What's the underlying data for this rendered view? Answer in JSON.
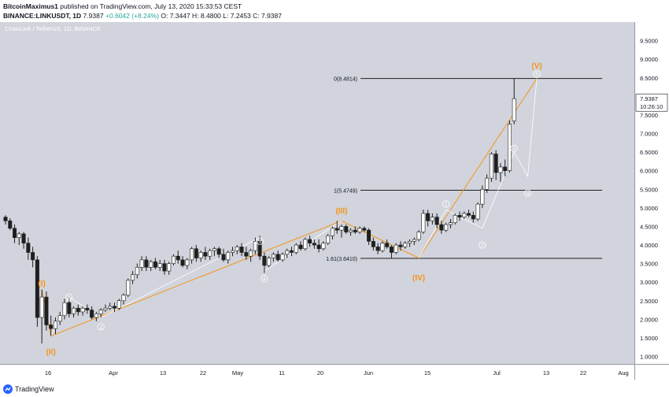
{
  "header": {
    "line1": {
      "author": "BitcoinMaximus1",
      "rest": " published on TradingView.com, July 13, 2020 15:33:53 CEST"
    },
    "line2": {
      "symbol": "BINANCE:LINKUSDT, 1D",
      "last": "7.9387",
      "change": "+0.6042 (+8.24%)",
      "ohlc": "O: 7.3447  H: 8.4800  L: 7.2453  C: 7.9387"
    }
  },
  "chart_label": "ChainLink / TetherUS, 1D, BINANCE",
  "price_axis": {
    "ticks": [
      "9.5000",
      "9.0000",
      "8.5000",
      "8.0000",
      "7.5000",
      "7.0000",
      "6.5000",
      "6.0000",
      "5.5000",
      "5.0000",
      "4.5000",
      "4.0000",
      "3.5000",
      "3.0000",
      "2.5000",
      "2.0000",
      "1.5000",
      "1.0000"
    ],
    "last_price": "7.9387",
    "countdown": "10:26:10"
  },
  "time_axis": {
    "ticks": [
      "16",
      "Apr",
      "13",
      "22",
      "May",
      "11",
      "20",
      "Jun",
      "15",
      "Jul",
      "13",
      "22",
      "Aug"
    ]
  },
  "colors": {
    "background": "#d1d4dc",
    "up": "#ffffff",
    "down": "#1f1f1f",
    "orange": "#f7931a",
    "white_line": "#ffffff",
    "level_line": "#1f1f1f"
  },
  "chart_data": {
    "type": "candlestick",
    "title": "ChainLink / TetherUS, 1D, BINANCE",
    "ylim": [
      0.8,
      10.0
    ],
    "y_scale": "linear",
    "grid": false,
    "fib_levels": [
      {
        "label": "0(8.4814)",
        "value": 8.4814
      },
      {
        "label": "1(5.4749)",
        "value": 5.4749
      },
      {
        "label": "1.61(3.6410)",
        "value": 3.641
      }
    ],
    "wave_labels_orange": [
      {
        "label": "(I)",
        "price": 2.9
      },
      {
        "label": "(II)",
        "price": 1.1
      },
      {
        "label": "(III)",
        "price": 4.8
      },
      {
        "label": "(IV)",
        "price": 3.1
      },
      {
        "label": "(V)",
        "price": 8.8
      }
    ],
    "wave_labels_white": [
      {
        "label": "1",
        "price": 2.6
      },
      {
        "label": "2",
        "price": 1.8
      },
      {
        "label": "3",
        "price": 4.1
      },
      {
        "label": "4",
        "price": 3.1
      },
      {
        "label": "1",
        "price": 5.1
      },
      {
        "label": "2",
        "price": 4.0
      },
      {
        "label": "3",
        "price": 6.6
      },
      {
        "label": "4",
        "price": 5.4
      },
      {
        "label": "5",
        "price": 8.6
      }
    ],
    "candles": [
      {
        "o": 4.75,
        "h": 4.8,
        "l": 4.55,
        "c": 4.65
      },
      {
        "o": 4.65,
        "h": 4.72,
        "l": 4.4,
        "c": 4.45
      },
      {
        "o": 4.45,
        "h": 4.55,
        "l": 4.05,
        "c": 4.2
      },
      {
        "o": 4.2,
        "h": 4.35,
        "l": 4.0,
        "c": 4.3
      },
      {
        "o": 4.3,
        "h": 4.35,
        "l": 3.9,
        "c": 4.05
      },
      {
        "o": 4.05,
        "h": 4.2,
        "l": 3.6,
        "c": 3.8
      },
      {
        "o": 3.8,
        "h": 3.95,
        "l": 3.4,
        "c": 3.6
      },
      {
        "o": 3.6,
        "h": 3.7,
        "l": 1.8,
        "c": 2.05
      },
      {
        "o": 2.05,
        "h": 2.8,
        "l": 1.35,
        "c": 2.6
      },
      {
        "o": 2.6,
        "h": 2.75,
        "l": 1.7,
        "c": 1.85
      },
      {
        "o": 1.85,
        "h": 2.1,
        "l": 1.55,
        "c": 1.75
      },
      {
        "o": 1.75,
        "h": 2.05,
        "l": 1.6,
        "c": 1.95
      },
      {
        "o": 1.95,
        "h": 2.2,
        "l": 1.85,
        "c": 2.1
      },
      {
        "o": 2.1,
        "h": 2.55,
        "l": 2.0,
        "c": 2.45
      },
      {
        "o": 2.45,
        "h": 2.6,
        "l": 2.05,
        "c": 2.15
      },
      {
        "o": 2.15,
        "h": 2.35,
        "l": 2.05,
        "c": 2.3
      },
      {
        "o": 2.3,
        "h": 2.4,
        "l": 2.1,
        "c": 2.2
      },
      {
        "o": 2.2,
        "h": 2.35,
        "l": 2.1,
        "c": 2.3
      },
      {
        "o": 2.3,
        "h": 2.4,
        "l": 2.15,
        "c": 2.25
      },
      {
        "o": 2.25,
        "h": 2.35,
        "l": 2.0,
        "c": 2.05
      },
      {
        "o": 2.05,
        "h": 2.2,
        "l": 1.95,
        "c": 2.15
      },
      {
        "o": 2.15,
        "h": 2.3,
        "l": 2.05,
        "c": 2.25
      },
      {
        "o": 2.25,
        "h": 2.4,
        "l": 2.2,
        "c": 2.3
      },
      {
        "o": 2.3,
        "h": 2.45,
        "l": 2.25,
        "c": 2.35
      },
      {
        "o": 2.35,
        "h": 2.45,
        "l": 2.2,
        "c": 2.3
      },
      {
        "o": 2.3,
        "h": 2.55,
        "l": 2.25,
        "c": 2.5
      },
      {
        "o": 2.5,
        "h": 2.7,
        "l": 2.4,
        "c": 2.65
      },
      {
        "o": 2.65,
        "h": 3.1,
        "l": 2.6,
        "c": 3.05
      },
      {
        "o": 3.05,
        "h": 3.3,
        "l": 2.95,
        "c": 3.2
      },
      {
        "o": 3.2,
        "h": 3.5,
        "l": 3.1,
        "c": 3.4
      },
      {
        "o": 3.4,
        "h": 3.7,
        "l": 3.3,
        "c": 3.6
      },
      {
        "o": 3.6,
        "h": 3.7,
        "l": 3.3,
        "c": 3.4
      },
      {
        "o": 3.4,
        "h": 3.6,
        "l": 3.3,
        "c": 3.55
      },
      {
        "o": 3.55,
        "h": 3.65,
        "l": 3.35,
        "c": 3.4
      },
      {
        "o": 3.4,
        "h": 3.6,
        "l": 3.3,
        "c": 3.5
      },
      {
        "o": 3.5,
        "h": 3.6,
        "l": 3.2,
        "c": 3.3
      },
      {
        "o": 3.3,
        "h": 3.55,
        "l": 3.2,
        "c": 3.5
      },
      {
        "o": 3.5,
        "h": 3.75,
        "l": 3.45,
        "c": 3.7
      },
      {
        "o": 3.7,
        "h": 3.85,
        "l": 3.5,
        "c": 3.6
      },
      {
        "o": 3.6,
        "h": 3.7,
        "l": 3.4,
        "c": 3.45
      },
      {
        "o": 3.45,
        "h": 3.65,
        "l": 3.35,
        "c": 3.6
      },
      {
        "o": 3.6,
        "h": 3.95,
        "l": 3.5,
        "c": 3.9
      },
      {
        "o": 3.9,
        "h": 4.0,
        "l": 3.55,
        "c": 3.65
      },
      {
        "o": 3.65,
        "h": 3.85,
        "l": 3.55,
        "c": 3.8
      },
      {
        "o": 3.8,
        "h": 3.95,
        "l": 3.6,
        "c": 3.7
      },
      {
        "o": 3.7,
        "h": 3.9,
        "l": 3.6,
        "c": 3.85
      },
      {
        "o": 3.85,
        "h": 3.95,
        "l": 3.7,
        "c": 3.9
      },
      {
        "o": 3.9,
        "h": 3.95,
        "l": 3.65,
        "c": 3.75
      },
      {
        "o": 3.75,
        "h": 3.9,
        "l": 3.55,
        "c": 3.6
      },
      {
        "o": 3.6,
        "h": 3.85,
        "l": 3.5,
        "c": 3.8
      },
      {
        "o": 3.8,
        "h": 3.95,
        "l": 3.7,
        "c": 3.85
      },
      {
        "o": 3.85,
        "h": 4.0,
        "l": 3.75,
        "c": 3.95
      },
      {
        "o": 3.95,
        "h": 4.05,
        "l": 3.7,
        "c": 3.8
      },
      {
        "o": 3.8,
        "h": 3.95,
        "l": 3.6,
        "c": 3.7
      },
      {
        "o": 3.7,
        "h": 3.9,
        "l": 3.55,
        "c": 3.85
      },
      {
        "o": 3.85,
        "h": 4.2,
        "l": 3.75,
        "c": 4.1
      },
      {
        "o": 4.1,
        "h": 4.25,
        "l": 3.6,
        "c": 3.7
      },
      {
        "o": 3.7,
        "h": 3.8,
        "l": 3.25,
        "c": 3.45
      },
      {
        "o": 3.45,
        "h": 3.7,
        "l": 3.4,
        "c": 3.65
      },
      {
        "o": 3.65,
        "h": 3.8,
        "l": 3.55,
        "c": 3.75
      },
      {
        "o": 3.75,
        "h": 3.85,
        "l": 3.55,
        "c": 3.6
      },
      {
        "o": 3.6,
        "h": 3.8,
        "l": 3.55,
        "c": 3.75
      },
      {
        "o": 3.75,
        "h": 3.9,
        "l": 3.65,
        "c": 3.85
      },
      {
        "o": 3.85,
        "h": 3.95,
        "l": 3.7,
        "c": 3.8
      },
      {
        "o": 3.8,
        "h": 4.05,
        "l": 3.75,
        "c": 4.0
      },
      {
        "o": 4.0,
        "h": 4.1,
        "l": 3.85,
        "c": 3.9
      },
      {
        "o": 3.9,
        "h": 4.2,
        "l": 3.85,
        "c": 4.15
      },
      {
        "o": 4.15,
        "h": 4.25,
        "l": 3.95,
        "c": 4.05
      },
      {
        "o": 4.05,
        "h": 4.15,
        "l": 3.9,
        "c": 4.0
      },
      {
        "o": 4.0,
        "h": 4.15,
        "l": 3.8,
        "c": 3.9
      },
      {
        "o": 3.9,
        "h": 4.1,
        "l": 3.85,
        "c": 4.05
      },
      {
        "o": 4.05,
        "h": 4.3,
        "l": 4.0,
        "c": 4.25
      },
      {
        "o": 4.25,
        "h": 4.5,
        "l": 4.15,
        "c": 4.45
      },
      {
        "o": 4.45,
        "h": 4.65,
        "l": 4.3,
        "c": 4.4
      },
      {
        "o": 4.4,
        "h": 4.55,
        "l": 4.2,
        "c": 4.5
      },
      {
        "o": 4.5,
        "h": 4.55,
        "l": 4.3,
        "c": 4.35
      },
      {
        "o": 4.35,
        "h": 4.45,
        "l": 4.25,
        "c": 4.4
      },
      {
        "o": 4.4,
        "h": 4.5,
        "l": 4.3,
        "c": 4.35
      },
      {
        "o": 4.35,
        "h": 4.5,
        "l": 4.3,
        "c": 4.45
      },
      {
        "o": 4.45,
        "h": 4.5,
        "l": 4.35,
        "c": 4.4
      },
      {
        "o": 4.4,
        "h": 4.45,
        "l": 4.0,
        "c": 4.1
      },
      {
        "o": 4.1,
        "h": 4.2,
        "l": 3.85,
        "c": 3.95
      },
      {
        "o": 3.95,
        "h": 4.05,
        "l": 3.75,
        "c": 3.85
      },
      {
        "o": 3.85,
        "h": 4.1,
        "l": 3.8,
        "c": 4.05
      },
      {
        "o": 4.05,
        "h": 4.15,
        "l": 3.9,
        "c": 3.95
      },
      {
        "o": 3.95,
        "h": 4.0,
        "l": 3.65,
        "c": 3.8
      },
      {
        "o": 3.8,
        "h": 4.05,
        "l": 3.75,
        "c": 4.0
      },
      {
        "o": 4.0,
        "h": 4.1,
        "l": 3.85,
        "c": 3.95
      },
      {
        "o": 3.95,
        "h": 4.1,
        "l": 3.9,
        "c": 4.05
      },
      {
        "o": 4.05,
        "h": 4.15,
        "l": 3.95,
        "c": 4.1
      },
      {
        "o": 4.1,
        "h": 4.2,
        "l": 4.0,
        "c": 4.15
      },
      {
        "o": 4.15,
        "h": 4.4,
        "l": 4.1,
        "c": 4.35
      },
      {
        "o": 4.35,
        "h": 4.95,
        "l": 4.3,
        "c": 4.85
      },
      {
        "o": 4.85,
        "h": 4.95,
        "l": 4.5,
        "c": 4.65
      },
      {
        "o": 4.65,
        "h": 4.85,
        "l": 4.55,
        "c": 4.75
      },
      {
        "o": 4.75,
        "h": 4.85,
        "l": 4.45,
        "c": 4.55
      },
      {
        "o": 4.55,
        "h": 4.65,
        "l": 4.3,
        "c": 4.4
      },
      {
        "o": 4.4,
        "h": 4.6,
        "l": 4.35,
        "c": 4.55
      },
      {
        "o": 4.55,
        "h": 4.7,
        "l": 4.45,
        "c": 4.6
      },
      {
        "o": 4.6,
        "h": 4.85,
        "l": 4.55,
        "c": 4.8
      },
      {
        "o": 4.8,
        "h": 4.9,
        "l": 4.65,
        "c": 4.75
      },
      {
        "o": 4.75,
        "h": 4.9,
        "l": 4.7,
        "c": 4.85
      },
      {
        "o": 4.85,
        "h": 4.95,
        "l": 4.75,
        "c": 4.8
      },
      {
        "o": 4.8,
        "h": 4.9,
        "l": 4.6,
        "c": 4.7
      },
      {
        "o": 4.7,
        "h": 5.15,
        "l": 4.65,
        "c": 5.1
      },
      {
        "o": 5.1,
        "h": 5.6,
        "l": 5.0,
        "c": 5.5
      },
      {
        "o": 5.5,
        "h": 5.9,
        "l": 5.4,
        "c": 5.8
      },
      {
        "o": 5.8,
        "h": 6.5,
        "l": 5.7,
        "c": 6.45
      },
      {
        "o": 6.45,
        "h": 6.55,
        "l": 5.75,
        "c": 5.95
      },
      {
        "o": 5.95,
        "h": 6.2,
        "l": 5.7,
        "c": 6.1
      },
      {
        "o": 6.1,
        "h": 6.3,
        "l": 5.85,
        "c": 6.0
      },
      {
        "o": 6.0,
        "h": 7.35,
        "l": 5.95,
        "c": 7.25
      },
      {
        "o": 7.34,
        "h": 8.48,
        "l": 7.25,
        "c": 7.94
      }
    ]
  }
}
